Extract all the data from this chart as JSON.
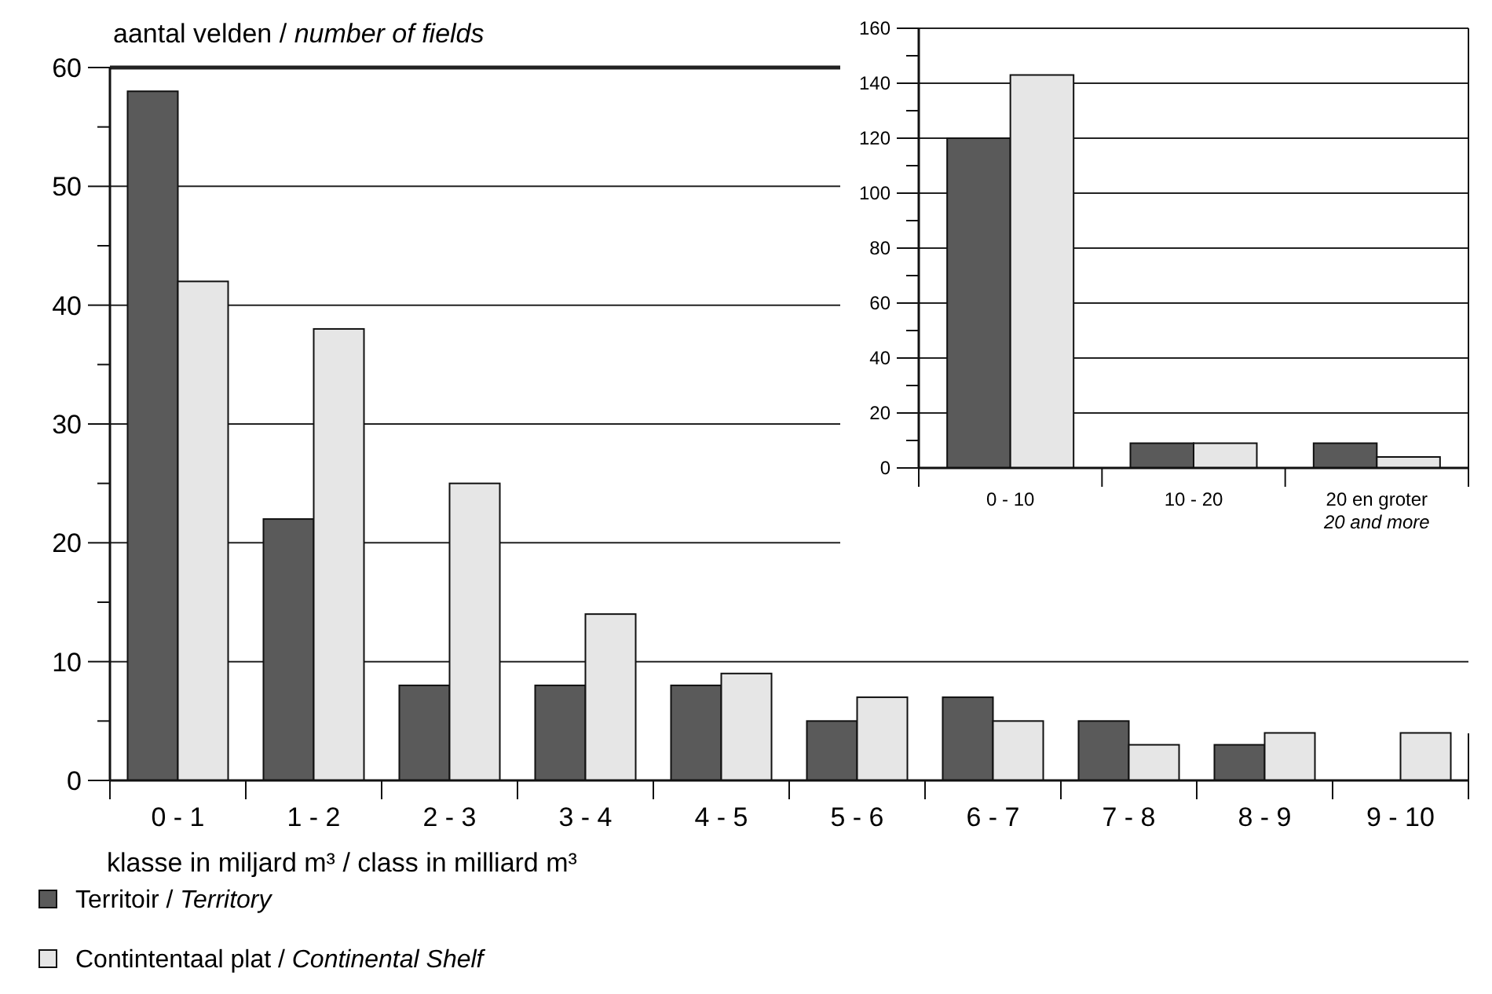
{
  "chart_data": [
    {
      "type": "bar",
      "ylabel": "aantal velden / number of fields",
      "xlabel": "klasse in miljard m³ / class in milliard m³",
      "categories": [
        "0 - 1",
        "1 - 2",
        "2 - 3",
        "3 - 4",
        "4 - 5",
        "5 - 6",
        "6 - 7",
        "7 - 8",
        "8 - 9",
        "9 - 10"
      ],
      "series": [
        {
          "name": "Territoir / Territory",
          "color": "#5a5a5a",
          "values": [
            58,
            22,
            8,
            8,
            8,
            5,
            7,
            5,
            3,
            0
          ]
        },
        {
          "name": "Contintentaal plat / Continental Shelf",
          "color": "#e6e6e6",
          "values": [
            42,
            38,
            25,
            14,
            9,
            7,
            5,
            3,
            4,
            4
          ]
        }
      ],
      "ylim": [
        0,
        60
      ],
      "yticks": [
        0,
        {
          "value": 5,
          "label": null
        },
        10,
        {
          "value": 15,
          "label": null
        },
        20,
        {
          "value": 25,
          "label": null
        },
        30,
        {
          "value": 35,
          "label": null
        },
        40,
        {
          "value": 45,
          "label": null
        },
        50,
        {
          "value": 55,
          "label": null
        },
        60
      ],
      "grid": "y",
      "legend": "bottom"
    },
    {
      "type": "bar",
      "categories": [
        "0 - 10",
        "10 - 20",
        "20 en groter\n20 and more"
      ],
      "series": [
        {
          "color": "#5a5a5a",
          "values": [
            120,
            9,
            9
          ]
        },
        {
          "color": "#e6e6e6",
          "values": [
            143,
            9,
            4
          ]
        }
      ],
      "ylim": [
        0,
        160
      ],
      "yticks": [
        0,
        {
          "value": 10,
          "label": null
        },
        20,
        {
          "value": 30,
          "label": null
        },
        40,
        {
          "value": 50,
          "label": null
        },
        60,
        {
          "value": 70,
          "label": null
        },
        80,
        {
          "value": 90,
          "label": null
        },
        100,
        {
          "value": 110,
          "label": null
        },
        120,
        {
          "value": 130,
          "label": null
        },
        140,
        {
          "value": 150,
          "label": null
        },
        160
      ],
      "grid": "y"
    }
  ]
}
